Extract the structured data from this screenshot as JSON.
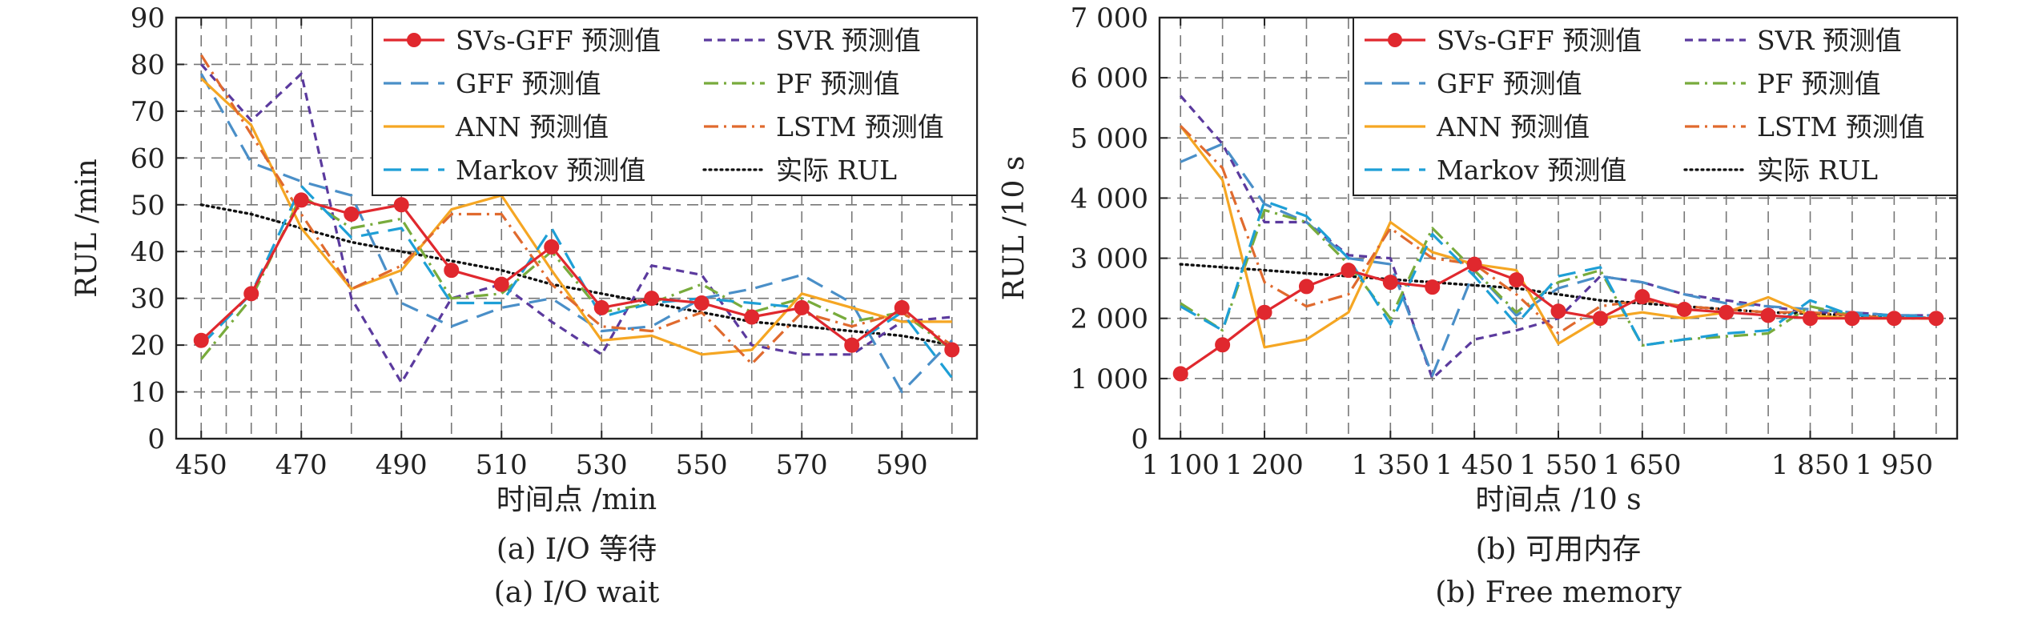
{
  "chart_data": [
    {
      "type": "line",
      "caption_cn": "(a) I/O 等待",
      "caption_en": "(a) I/O wait",
      "xlabel": "时间点 /min",
      "ylabel": "RUL /min",
      "xlim": [
        445,
        605
      ],
      "ylim": [
        0,
        90
      ],
      "xticks": [
        450,
        470,
        490,
        510,
        530,
        550,
        570,
        590
      ],
      "xtick_labels": [
        "450",
        "470",
        "490",
        "510",
        "530",
        "550",
        "570",
        "590"
      ],
      "yticks": [
        0,
        10,
        20,
        30,
        40,
        50,
        60,
        70,
        80,
        90
      ],
      "ytick_labels": [
        "0",
        "10",
        "20",
        "30",
        "40",
        "50",
        "60",
        "70",
        "80",
        "90"
      ],
      "grid": true,
      "legend_position": "top-right",
      "x": [
        450,
        460,
        470,
        480,
        490,
        500,
        510,
        520,
        530,
        540,
        550,
        560,
        570,
        580,
        590,
        600
      ],
      "series": [
        {
          "name": "SVs-GFF 预测值",
          "color": "#e0282e",
          "style": "solid-marker",
          "values": [
            21,
            31,
            51,
            48,
            50,
            36,
            33,
            41,
            28,
            30,
            29,
            26,
            28,
            20,
            28,
            19
          ]
        },
        {
          "name": "SVR 预测值",
          "color": "#5b3a9e",
          "style": "dash",
          "values": [
            80,
            68,
            78,
            30,
            12,
            30,
            33,
            25,
            18,
            37,
            35,
            20,
            18,
            18,
            25,
            26
          ]
        },
        {
          "name": "GFF 预测值",
          "color": "#4a8fc8",
          "style": "longdash",
          "values": [
            78,
            59,
            55,
            52,
            29,
            24,
            28,
            30,
            23,
            24,
            30,
            32,
            35,
            29,
            10,
            21
          ]
        },
        {
          "name": "PF 预测值",
          "color": "#78ab3c",
          "style": "dashdot",
          "values": [
            17,
            30,
            52,
            45,
            47,
            30,
            31,
            40,
            27,
            29,
            33,
            27,
            30,
            25,
            27,
            19
          ]
        },
        {
          "name": "ANN 预测值",
          "color": "#f5a623",
          "style": "solid",
          "values": [
            77,
            67,
            45,
            32,
            36,
            49,
            52,
            36,
            21,
            22,
            18,
            19,
            31,
            28,
            25,
            25
          ]
        },
        {
          "name": "LSTM 预测值",
          "color": "#e06a2e",
          "style": "dashdot",
          "values": [
            82,
            65,
            48,
            32,
            37,
            48,
            48,
            33,
            24,
            23,
            27,
            16,
            27,
            24,
            27,
            20
          ]
        },
        {
          "name": "Markov 预测值",
          "color": "#1e9fd6",
          "style": "longdash",
          "values": [
            20,
            31,
            54,
            43,
            45,
            29,
            29,
            45,
            26,
            29,
            30,
            29,
            28,
            20,
            27,
            13
          ]
        },
        {
          "name": "实际 RUL",
          "color": "#111111",
          "style": "dotted",
          "values": [
            50,
            48,
            45,
            42,
            40,
            38,
            36,
            33,
            31,
            29,
            27,
            25,
            24,
            23,
            22,
            20
          ]
        }
      ]
    },
    {
      "type": "line",
      "caption_cn": "(b) 可用内存",
      "caption_en": "(b) Free memory",
      "xlabel": "时间点 /10 s",
      "ylabel": "RUL /10 s",
      "xlim": [
        1075,
        2025
      ],
      "ylim": [
        0,
        7000
      ],
      "xticks": [
        1100,
        1200,
        1350,
        1450,
        1550,
        1650,
        1850,
        1950
      ],
      "xtick_labels": [
        "1 100",
        "1 200",
        "1 350",
        "1 450",
        "1 550",
        "1 650",
        "1 850",
        "1 950"
      ],
      "yticks": [
        0,
        1000,
        2000,
        3000,
        4000,
        5000,
        6000,
        7000
      ],
      "ytick_labels": [
        "0",
        "1 000",
        "2 000",
        "3 000",
        "4 000",
        "5 000",
        "6 000",
        "7 000"
      ],
      "grid": true,
      "legend_position": "top-right",
      "x": [
        1100,
        1150,
        1200,
        1250,
        1300,
        1350,
        1400,
        1450,
        1500,
        1550,
        1600,
        1650,
        1700,
        1750,
        1800,
        1850,
        1900,
        1950,
        2000
      ],
      "series": [
        {
          "name": "SVs-GFF 预测值",
          "color": "#e0282e",
          "style": "solid-marker",
          "values": [
            1080,
            1560,
            2100,
            2530,
            2800,
            2600,
            2520,
            2900,
            2640,
            2120,
            2000,
            2360,
            2150,
            2100,
            2050,
            2000,
            2000,
            2000,
            2000
          ]
        },
        {
          "name": "SVR 预测值",
          "color": "#5b3a9e",
          "style": "dash",
          "values": [
            5700,
            4900,
            3600,
            3600,
            3050,
            3000,
            1000,
            1650,
            1800,
            2000,
            2700,
            2600,
            2400,
            2300,
            2200,
            2100,
            2100,
            2050,
            2050
          ]
        },
        {
          "name": "GFF 预测值",
          "color": "#4a8fc8",
          "style": "longdash",
          "values": [
            4600,
            4900,
            3900,
            3600,
            3000,
            2900,
            1050,
            2800,
            2050,
            2500,
            2700,
            2600,
            2400,
            2250,
            2200,
            2150,
            2100,
            2050,
            2050
          ]
        },
        {
          "name": "PF 预测值",
          "color": "#78ab3c",
          "style": "dashdot",
          "values": [
            2250,
            1800,
            3800,
            3600,
            2900,
            2000,
            3500,
            2800,
            2100,
            2600,
            2800,
            1550,
            1650,
            1700,
            1750,
            2200,
            2050,
            2000,
            2000
          ]
        },
        {
          "name": "ANN 预测值",
          "color": "#f5a623",
          "style": "solid",
          "values": [
            5200,
            4300,
            1520,
            1650,
            2100,
            3600,
            3100,
            2900,
            2800,
            1580,
            2000,
            2100,
            2000,
            2100,
            2350,
            2050,
            2000,
            2000,
            2000
          ]
        },
        {
          "name": "LSTM 预测值",
          "color": "#e06a2e",
          "style": "dashdot",
          "values": [
            5200,
            4500,
            2600,
            2200,
            2400,
            3500,
            3000,
            2900,
            2400,
            1750,
            2200,
            2300,
            2200,
            2150,
            2100,
            2100,
            2050,
            2000,
            2000
          ]
        },
        {
          "name": "Markov 预测值",
          "color": "#1e9fd6",
          "style": "longdash",
          "values": [
            2200,
            1800,
            3950,
            3700,
            3000,
            1900,
            3400,
            2700,
            1900,
            2700,
            2850,
            1550,
            1650,
            1750,
            1800,
            2300,
            2050,
            2050,
            2000
          ]
        },
        {
          "name": "实际 RUL",
          "color": "#111111",
          "style": "dotted",
          "values": [
            2900,
            2850,
            2800,
            2750,
            2700,
            2650,
            2600,
            2550,
            2500,
            2400,
            2300,
            2250,
            2200,
            2150,
            2100,
            2080,
            2050,
            2020,
            2000
          ]
        }
      ]
    }
  ]
}
